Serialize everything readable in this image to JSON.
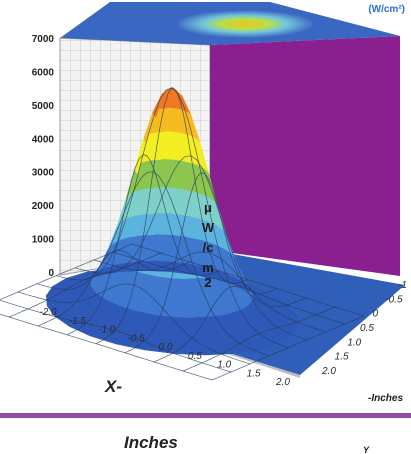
{
  "chart_data": {
    "type": "surface",
    "zlabel": [
      "μ",
      "W",
      "/c",
      "m",
      "2"
    ],
    "xlabel": [
      "X-",
      "Inches"
    ],
    "ylabel": [
      "-Inches",
      "Y"
    ],
    "corner_text": "(W/cm²)",
    "z_ticks": [
      "7000",
      "6000",
      "5000",
      "4000",
      "3000",
      "2000",
      "1000",
      "0"
    ],
    "z_range": [
      0,
      7000
    ],
    "x_ticks": [
      "-2.0",
      "-1.5",
      "-1.0",
      "-0.5",
      "0.0",
      "0.5",
      "1.0",
      "1.5",
      "2.0"
    ],
    "y_ticks": [
      "-1",
      "-0.5",
      "0",
      "0.5",
      "1.0",
      "1.5",
      "2.0"
    ],
    "x_range": [
      -2.0,
      2.0
    ],
    "y_range": [
      -2.0,
      2.0
    ],
    "peak_value": 7000,
    "band_colors": [
      "#2f59b8",
      "#3f79cf",
      "#5cb3dd",
      "#7fd0c9",
      "#8cc64e",
      "#c1de42",
      "#f3ee22",
      "#f7bb22",
      "#f07822"
    ],
    "wall_color": "#8a1f8f",
    "floor_color": "#2f5fb8",
    "top_plane_color": "#3a67c1"
  }
}
